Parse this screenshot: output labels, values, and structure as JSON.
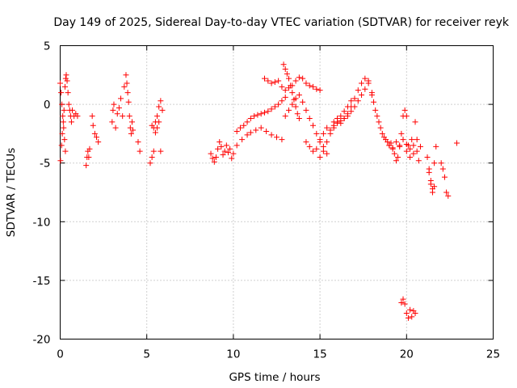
{
  "chart_data": {
    "type": "scatter",
    "title": "Day 149 of 2025, Sidereal Day-to-day VTEC variation (SDTVAR) for receiver reyk",
    "xlabel": "GPS time / hours",
    "ylabel": "SDTVAR / TECUs",
    "xlim": [
      0,
      25
    ],
    "ylim": [
      -20,
      5
    ],
    "x_ticks": [
      0,
      5,
      10,
      15,
      20,
      25
    ],
    "y_ticks": [
      -20,
      -15,
      -10,
      -5,
      0,
      5
    ],
    "x_tick_labels": [
      "0",
      "5",
      "10",
      "15",
      "20",
      "25"
    ],
    "y_tick_labels": [
      "-20",
      "-15",
      "-10",
      "-5",
      "0",
      "5"
    ],
    "grid": true,
    "marker": "+",
    "series": [
      {
        "name": "SDTVAR",
        "color": "#ff0000",
        "x": [
          0.0,
          0.05,
          0.1,
          0.15,
          0.2,
          0.25,
          0.3,
          0.35,
          0.4,
          0.45,
          0.5,
          0.55,
          0.6,
          0.65,
          0.7,
          0.8,
          0.9,
          1.0,
          0.02,
          0.08,
          0.12,
          0.18,
          0.22,
          0.28,
          0.32,
          1.5,
          1.55,
          1.6,
          1.65,
          1.7,
          1.85,
          1.9,
          2.0,
          2.1,
          2.2,
          3.0,
          3.05,
          3.1,
          3.2,
          3.3,
          3.4,
          3.5,
          3.6,
          3.7,
          3.8,
          3.85,
          3.9,
          3.95,
          4.0,
          4.05,
          4.1,
          4.15,
          4.2,
          4.5,
          4.6,
          5.2,
          5.3,
          5.4,
          5.5,
          5.6,
          5.7,
          5.8,
          5.9,
          5.3,
          5.4,
          5.5,
          5.6,
          5.7,
          5.8,
          8.7,
          8.8,
          8.9,
          9.0,
          9.1,
          9.2,
          9.3,
          9.4,
          9.5,
          9.6,
          9.7,
          9.8,
          9.9,
          10.0,
          10.2,
          10.4,
          10.6,
          10.8,
          11.0,
          11.2,
          11.4,
          11.6,
          11.8,
          12.0,
          12.2,
          12.4,
          12.6,
          12.8,
          13.0,
          10.2,
          10.5,
          10.8,
          11.0,
          11.3,
          11.6,
          11.9,
          12.2,
          12.5,
          12.8,
          11.8,
          12.0,
          12.2,
          12.4,
          12.6,
          12.8,
          13.0,
          13.2,
          13.4,
          13.6,
          13.8,
          14.0,
          14.2,
          14.4,
          14.6,
          14.8,
          15.0,
          12.9,
          13.0,
          13.1,
          13.2,
          13.3,
          13.4,
          13.5,
          13.6,
          13.7,
          13.8,
          13.0,
          13.2,
          13.4,
          13.6,
          13.8,
          14.0,
          14.2,
          14.4,
          14.6,
          14.8,
          15.0,
          15.2,
          15.4,
          15.0,
          15.2,
          15.4,
          15.6,
          15.8,
          16.0,
          16.2,
          16.4,
          16.6,
          16.8,
          17.0,
          17.2,
          17.4,
          17.6,
          17.8,
          14.2,
          14.4,
          14.6,
          14.8,
          15.0,
          15.2,
          15.4,
          15.6,
          15.8,
          16.0,
          16.2,
          16.4,
          16.6,
          16.8,
          15.8,
          16.0,
          16.2,
          16.4,
          16.6,
          16.8,
          17.0,
          17.2,
          17.4,
          17.6,
          17.8,
          18.0,
          18.0,
          18.1,
          18.2,
          18.3,
          18.4,
          18.5,
          18.6,
          18.7,
          18.8,
          18.9,
          19.0,
          19.1,
          19.2,
          19.3,
          19.4,
          19.5,
          19.6,
          19.7,
          19.8,
          19.9,
          20.0,
          19.0,
          19.2,
          19.4,
          19.6,
          19.8,
          20.0,
          20.2,
          20.4,
          20.6,
          20.8,
          20.0,
          20.1,
          20.2,
          20.3,
          20.4,
          20.5,
          20.6,
          20.7,
          19.7,
          19.8,
          19.9,
          20.0,
          20.1,
          20.2,
          20.3,
          20.4,
          20.5,
          21.2,
          21.3,
          21.4,
          21.5,
          21.6,
          21.7,
          21.3,
          21.4,
          21.5,
          21.6,
          22.0,
          22.1,
          22.2,
          22.3,
          22.4,
          22.9
        ],
        "y": [
          1.8,
          1.0,
          0.0,
          -1.0,
          -2.0,
          -3.0,
          -4.0,
          2.5,
          2.0,
          1.0,
          0.0,
          -0.5,
          -1.0,
          -1.5,
          -0.5,
          -1.0,
          -0.8,
          -1.0,
          -4.8,
          -3.5,
          -2.5,
          -1.5,
          -0.5,
          1.5,
          2.2,
          -5.2,
          -4.5,
          -4.0,
          -4.5,
          -3.8,
          -1.0,
          -1.8,
          -2.5,
          -2.8,
          -3.2,
          -1.5,
          -0.5,
          0.0,
          -2.0,
          -0.8,
          -0.3,
          0.5,
          -1.0,
          1.5,
          2.5,
          1.8,
          1.0,
          0.2,
          -1.0,
          -2.0,
          -2.5,
          -1.5,
          -2.2,
          -3.2,
          -4.0,
          -5.0,
          -4.5,
          -4.0,
          -1.5,
          -2.0,
          -0.2,
          0.3,
          -0.5,
          -1.8,
          -2.0,
          -2.4,
          -1.0,
          -1.5,
          -4.0,
          -4.2,
          -4.6,
          -4.9,
          -4.5,
          -3.8,
          -3.2,
          -3.6,
          -4.3,
          -4.0,
          -3.5,
          -4.1,
          -3.8,
          -4.6,
          -4.2,
          -2.3,
          -2.0,
          -1.8,
          -1.5,
          -1.2,
          -1.0,
          -0.9,
          -0.8,
          -0.7,
          -0.6,
          -0.4,
          -0.2,
          0.0,
          0.3,
          0.6,
          -3.5,
          -3.0,
          -2.6,
          -2.4,
          -2.2,
          -2.0,
          -2.3,
          -2.6,
          -2.8,
          -3.0,
          2.2,
          2.0,
          1.8,
          1.9,
          2.0,
          1.5,
          1.2,
          1.4,
          1.6,
          2.0,
          2.3,
          2.2,
          1.8,
          1.6,
          1.5,
          1.3,
          1.2,
          3.4,
          3.0,
          2.6,
          2.2,
          1.6,
          1.0,
          0.4,
          -0.2,
          -0.8,
          -1.2,
          -1.0,
          -0.5,
          0.0,
          0.5,
          0.8,
          0.2,
          -0.5,
          -1.2,
          -1.8,
          -2.5,
          -3.0,
          -3.6,
          -4.2,
          -4.5,
          -4.0,
          -3.2,
          -2.5,
          -2.0,
          -1.5,
          -1.6,
          -1.2,
          -0.8,
          -0.2,
          0.5,
          1.2,
          1.8,
          2.2,
          2.0,
          -3.2,
          -3.6,
          -4.0,
          -3.8,
          -3.2,
          -2.5,
          -2.0,
          -2.2,
          -1.5,
          -1.2,
          -1.0,
          -0.6,
          -0.2,
          0.3,
          -1.8,
          -1.6,
          -1.4,
          -1.2,
          -1.0,
          -0.6,
          -0.2,
          0.3,
          0.8,
          1.3,
          1.8,
          1.0,
          0.8,
          0.2,
          -0.5,
          -1.0,
          -1.5,
          -2.0,
          -2.5,
          -2.8,
          -3.0,
          -3.2,
          -3.5,
          -3.3,
          -3.7,
          -4.2,
          -4.8,
          -4.5,
          -3.5,
          -2.5,
          -1.0,
          -0.5,
          -1.0,
          -3.5,
          -3.8,
          -3.2,
          -3.6,
          -3.0,
          -3.4,
          -3.8,
          -3.5,
          -4.0,
          -3.6,
          -4.0,
          -3.5,
          -4.5,
          -3.0,
          -4.2,
          -1.5,
          -3.0,
          -4.8,
          -16.9,
          -16.6,
          -17.0,
          -17.8,
          -18.2,
          -17.5,
          -18.1,
          -17.6,
          -17.8,
          -4.5,
          -5.5,
          -6.5,
          -7.2,
          -5.0,
          -3.6,
          -5.8,
          -6.8,
          -7.5,
          -7.0,
          -5.0,
          -5.5,
          -6.2,
          -7.5,
          -7.8,
          -3.3
        ]
      }
    ]
  }
}
